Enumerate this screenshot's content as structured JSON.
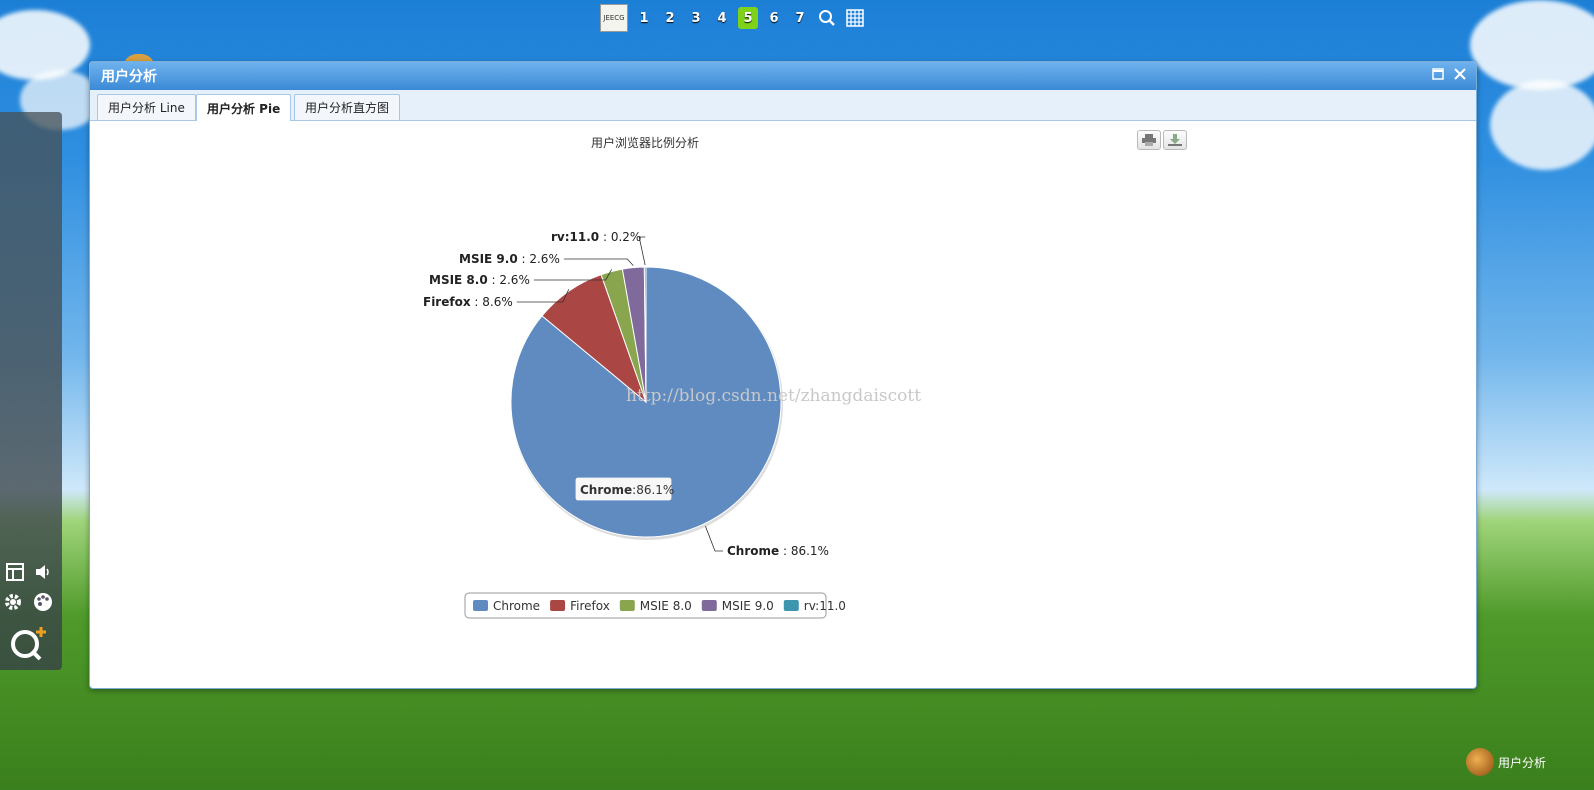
{
  "dock": {
    "logo_text": "JEECG",
    "desktops": [
      "1",
      "2",
      "3",
      "4",
      "5",
      "6",
      "7"
    ],
    "active_desktop": "5",
    "icons": [
      "search-icon",
      "grid-icon"
    ]
  },
  "window": {
    "title": "用户分析",
    "tabs": [
      {
        "label": "用户分析 Line"
      },
      {
        "label": "用户分析 Pie",
        "active": true
      },
      {
        "label": "用户分析直方图"
      }
    ]
  },
  "chart_data": {
    "type": "pie",
    "title": "用户浏览器比例分析",
    "slices": [
      {
        "name": "Chrome",
        "value": 86.1,
        "color": "#5f8bc1"
      },
      {
        "name": "Firefox",
        "value": 8.6,
        "color": "#aa4643"
      },
      {
        "name": "MSIE 8.0",
        "value": 2.6,
        "color": "#89a54e"
      },
      {
        "name": "MSIE 9.0",
        "value": 2.6,
        "color": "#80699b"
      },
      {
        "name": "rv:11.0",
        "value": 0.2,
        "color": "#3d96ae"
      }
    ],
    "data_labels": [
      {
        "name": "rv:11.0",
        "text": "0.2%"
      },
      {
        "name": "MSIE 9.0",
        "text": "2.6%"
      },
      {
        "name": "MSIE 8.0",
        "text": "2.6%"
      },
      {
        "name": "Firefox",
        "text": "8.6%"
      },
      {
        "name": "Chrome",
        "text": "86.1%"
      }
    ],
    "tooltip": {
      "name": "Chrome",
      "text": ":86.1%"
    },
    "legend": [
      "Chrome",
      "Firefox",
      "MSIE 8.0",
      "MSIE 9.0",
      "rv:11.0"
    ],
    "legend_position": "bottom",
    "watermark": "http://blog.csdn.net/zhangdaiscott"
  },
  "export_buttons": [
    "print-icon",
    "download-icon"
  ],
  "taskbar": {
    "item_label": "用户分析"
  },
  "sidebar_tools": [
    "layout-icon",
    "volume-icon",
    "gear-icon",
    "palette-icon",
    "q-plus-icon"
  ]
}
